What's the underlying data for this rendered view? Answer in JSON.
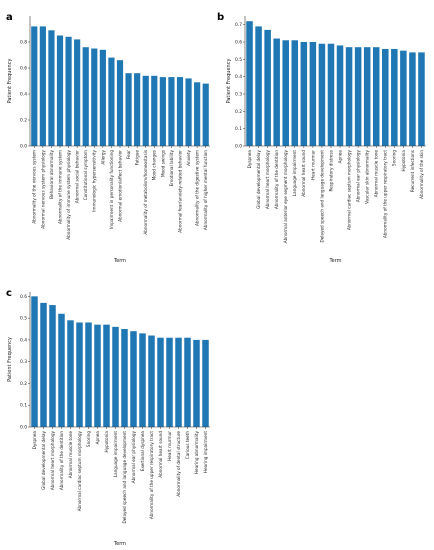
{
  "chart_data": [
    {
      "panel": "a",
      "type": "bar",
      "ylabel": "Patient Frequency",
      "xlabel": "Term",
      "ylim": [
        0,
        1.0
      ],
      "yticks": [
        "0.0",
        "0.2",
        "0.4",
        "0.6",
        "0.8"
      ],
      "ytick_values": [
        0,
        0.2,
        0.4,
        0.6,
        0.8
      ],
      "color": "#1f77b4",
      "categories": [
        "Abnormality of the nervous system",
        "Abnormal nervous system physiology",
        "Behavioral abnormality",
        "Abnormality of the immune system",
        "Abnormality of immune system physiology",
        "Abnormal social behavior",
        "Constitutional symptom",
        "Immunologic hypersensitivity",
        "Allergy",
        "Impairment in personality functioning",
        "Abnormal emotion/affect behavior",
        "Fear",
        "Fatigue",
        "Abnormality of metabolism/homeostasis",
        "Mood changes",
        "Mood swings",
        "Emotional lability",
        "Abnormal fear/anxiety-related behavior",
        "Anxiety",
        "Abnormality of the digestive system",
        "Abnormality of higher mental function"
      ],
      "values": [
        0.92,
        0.92,
        0.89,
        0.85,
        0.84,
        0.82,
        0.76,
        0.75,
        0.74,
        0.68,
        0.66,
        0.56,
        0.56,
        0.54,
        0.54,
        0.53,
        0.53,
        0.53,
        0.52,
        0.49,
        0.48
      ]
    },
    {
      "panel": "b",
      "type": "bar",
      "ylabel": "Patient Frequency",
      "xlabel": "Term",
      "ylim": [
        0,
        0.75
      ],
      "yticks": [
        "0.0",
        "0.1",
        "0.2",
        "0.3",
        "0.4",
        "0.5",
        "0.6",
        "0.7"
      ],
      "ytick_values": [
        0,
        0.1,
        0.2,
        0.3,
        0.4,
        0.5,
        0.6,
        0.7
      ],
      "color": "#1f77b4",
      "categories": [
        "Dyspnea",
        "Global developmental delay",
        "Abnormal heart morphology",
        "Abnormality of the dentition",
        "Abnormal anterior eye segment morphology",
        "Language impairment",
        "Abnormal heart sound",
        "Heart murmur",
        "Delayed speech and language development",
        "Respiratory distress",
        "Apnea",
        "Abnormal cardiac septum morphology",
        "Abnormal ear physiology",
        "Vascular skin abnormality",
        "Abnormal muscle tone",
        "Abnormality of the upper respiratory tract",
        "Snoring",
        "Hypotonia",
        "Recurrent infections",
        "Abnormality of the skin"
      ],
      "values": [
        0.72,
        0.69,
        0.67,
        0.62,
        0.61,
        0.61,
        0.6,
        0.6,
        0.59,
        0.59,
        0.58,
        0.57,
        0.57,
        0.57,
        0.57,
        0.56,
        0.56,
        0.55,
        0.54,
        0.54
      ]
    },
    {
      "panel": "c",
      "type": "bar",
      "ylabel": "Patient Frequency",
      "xlabel": "Term",
      "ylim": [
        0,
        0.62
      ],
      "yticks": [
        "0.0",
        "0.1",
        "0.2",
        "0.3",
        "0.4",
        "0.5",
        "0.6"
      ],
      "ytick_values": [
        0,
        0.1,
        0.2,
        0.3,
        0.4,
        0.5,
        0.6
      ],
      "color": "#1f77b4",
      "categories": [
        "Dyspnea",
        "Global developmental delay",
        "Abnormal heart morphology",
        "Abnormality of the dentition",
        "Abnormal muscle tone",
        "Abnormal cardiac septum morphology",
        "Snoring",
        "Apnea",
        "Hypotonia",
        "Language impairment",
        "Delayed speech and language development",
        "Abnormal ear physiology",
        "Exertional dyspnea",
        "Abnormality of the upper respiratory tract",
        "Abnormal heart sound",
        "Heart murmur",
        "Abnormality of dental structure",
        "Carious teeth",
        "Hearing abnormality",
        "Hearing impairment"
      ],
      "values": [
        0.6,
        0.57,
        0.56,
        0.52,
        0.49,
        0.48,
        0.48,
        0.47,
        0.47,
        0.46,
        0.45,
        0.44,
        0.43,
        0.42,
        0.41,
        0.41,
        0.41,
        0.41,
        0.4,
        0.4
      ]
    }
  ]
}
